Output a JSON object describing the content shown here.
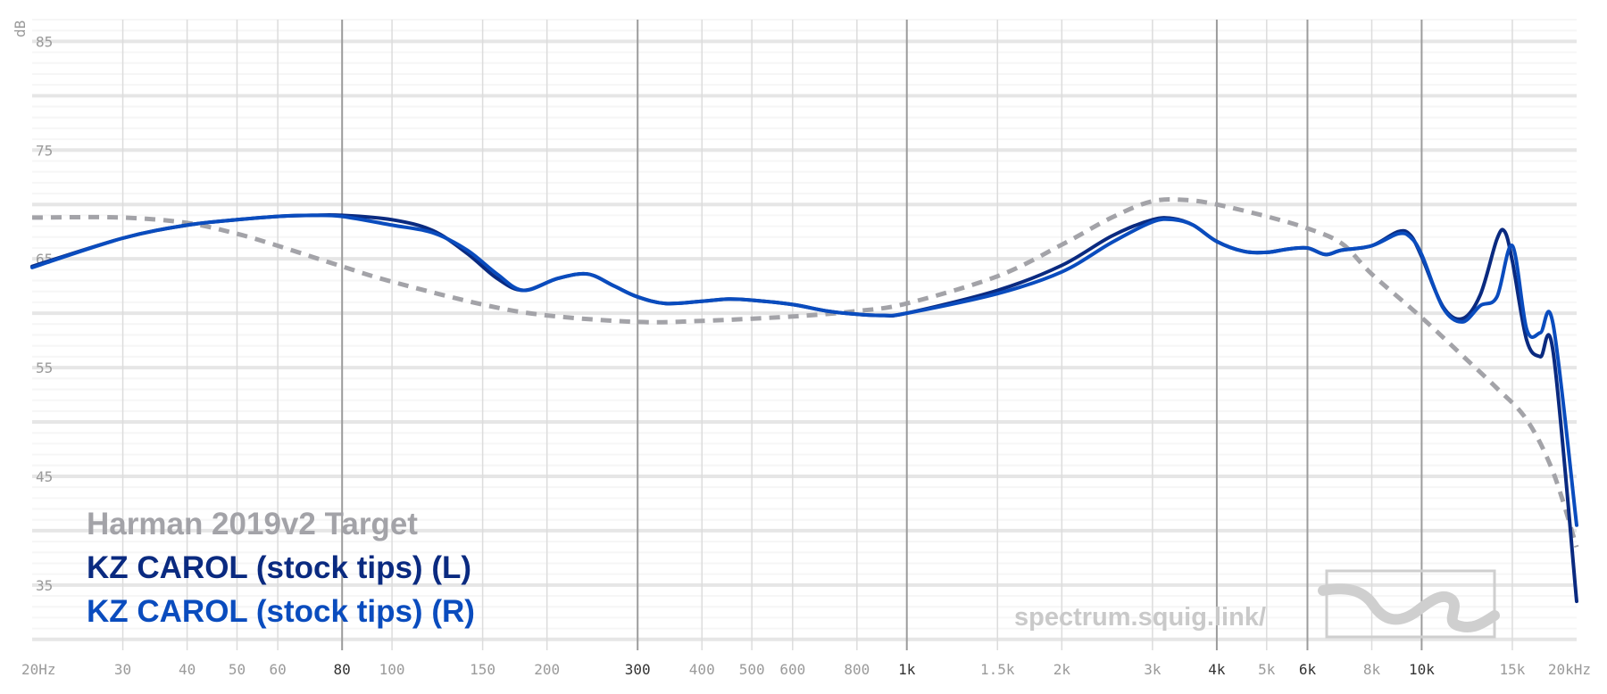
{
  "chart_data": {
    "type": "line",
    "ylabel": "dB",
    "xscale": "log",
    "xlim": [
      20,
      20000
    ],
    "ylim": [
      29,
      87
    ],
    "grid": true,
    "legend_position": "bottom-left",
    "y_ticks": [
      {
        "value": 85,
        "label": "85"
      },
      {
        "value": 75,
        "label": "75"
      },
      {
        "value": 65,
        "label": "65"
      },
      {
        "value": 55,
        "label": "55"
      },
      {
        "value": 45,
        "label": "45"
      },
      {
        "value": 35,
        "label": "35"
      }
    ],
    "x_ticks": [
      {
        "value": 20,
        "label": "20Hz",
        "major": false
      },
      {
        "value": 30,
        "label": "30",
        "major": false
      },
      {
        "value": 40,
        "label": "40",
        "major": false
      },
      {
        "value": 50,
        "label": "50",
        "major": false
      },
      {
        "value": 60,
        "label": "60",
        "major": false
      },
      {
        "value": 80,
        "label": "80",
        "major": true
      },
      {
        "value": 100,
        "label": "100",
        "major": false
      },
      {
        "value": 150,
        "label": "150",
        "major": false
      },
      {
        "value": 200,
        "label": "200",
        "major": false
      },
      {
        "value": 300,
        "label": "300",
        "major": true
      },
      {
        "value": 400,
        "label": "400",
        "major": false
      },
      {
        "value": 500,
        "label": "500",
        "major": false
      },
      {
        "value": 600,
        "label": "600",
        "major": false
      },
      {
        "value": 800,
        "label": "800",
        "major": false
      },
      {
        "value": 1000,
        "label": "1k",
        "major": true
      },
      {
        "value": 1500,
        "label": "1.5k",
        "major": false
      },
      {
        "value": 2000,
        "label": "2k",
        "major": false
      },
      {
        "value": 3000,
        "label": "3k",
        "major": false
      },
      {
        "value": 4000,
        "label": "4k",
        "major": true
      },
      {
        "value": 5000,
        "label": "5k",
        "major": false
      },
      {
        "value": 6000,
        "label": "6k",
        "major": true
      },
      {
        "value": 8000,
        "label": "8k",
        "major": false
      },
      {
        "value": 10000,
        "label": "10k",
        "major": true
      },
      {
        "value": 15000,
        "label": "15k",
        "major": false
      },
      {
        "value": 20000,
        "label": "20kHz",
        "major": false
      }
    ],
    "series": [
      {
        "name": "Harman 2019v2 Target",
        "color": "#a3a3a8",
        "style": "dashed",
        "points": [
          [
            20,
            68.8
          ],
          [
            30,
            68.8
          ],
          [
            40,
            68.3
          ],
          [
            50,
            67.3
          ],
          [
            60,
            66.2
          ],
          [
            80,
            64.3
          ],
          [
            100,
            62.9
          ],
          [
            150,
            60.8
          ],
          [
            200,
            59.8
          ],
          [
            300,
            59.2
          ],
          [
            400,
            59.3
          ],
          [
            600,
            59.7
          ],
          [
            800,
            60.2
          ],
          [
            1000,
            60.9
          ],
          [
            1500,
            63.4
          ],
          [
            2000,
            66.3
          ],
          [
            2500,
            68.8
          ],
          [
            3000,
            70.3
          ],
          [
            3500,
            70.4
          ],
          [
            4000,
            70.0
          ],
          [
            5000,
            68.9
          ],
          [
            6000,
            67.8
          ],
          [
            7000,
            66.4
          ],
          [
            8000,
            63.6
          ],
          [
            10000,
            59.6
          ],
          [
            12000,
            56.1
          ],
          [
            14000,
            53.1
          ],
          [
            16000,
            50.2
          ],
          [
            18000,
            45.4
          ],
          [
            20000,
            38.5
          ]
        ]
      },
      {
        "name": "KZ CAROL (stock tips) (L)",
        "color": "#0a2a80",
        "style": "solid",
        "points": [
          [
            20,
            64.3
          ],
          [
            30,
            66.9
          ],
          [
            40,
            68.1
          ],
          [
            50,
            68.6
          ],
          [
            60,
            68.9
          ],
          [
            70,
            69.0
          ],
          [
            80,
            69.0
          ],
          [
            100,
            68.6
          ],
          [
            120,
            67.6
          ],
          [
            140,
            65.5
          ],
          [
            160,
            63.2
          ],
          [
            180,
            62.1
          ],
          [
            210,
            63.2
          ],
          [
            240,
            63.6
          ],
          [
            270,
            62.5
          ],
          [
            300,
            61.5
          ],
          [
            340,
            60.9
          ],
          [
            400,
            61.1
          ],
          [
            450,
            61.3
          ],
          [
            500,
            61.2
          ],
          [
            600,
            60.8
          ],
          [
            700,
            60.2
          ],
          [
            800,
            59.9
          ],
          [
            900,
            59.8
          ],
          [
            1000,
            60.0
          ],
          [
            1500,
            62.1
          ],
          [
            2000,
            64.4
          ],
          [
            2500,
            67.1
          ],
          [
            3000,
            68.6
          ],
          [
            3300,
            68.7
          ],
          [
            3600,
            68.1
          ],
          [
            4000,
            66.6
          ],
          [
            4500,
            65.7
          ],
          [
            5000,
            65.6
          ],
          [
            5500,
            65.9
          ],
          [
            6000,
            66.0
          ],
          [
            6500,
            65.4
          ],
          [
            7000,
            65.8
          ],
          [
            8000,
            66.2
          ],
          [
            9000,
            67.5
          ],
          [
            9500,
            67.2
          ],
          [
            10000,
            65.2
          ],
          [
            11000,
            60.6
          ],
          [
            12000,
            59.5
          ],
          [
            13000,
            61.7
          ],
          [
            14000,
            66.8
          ],
          [
            14500,
            67.5
          ],
          [
            15000,
            64.8
          ],
          [
            16000,
            57.5
          ],
          [
            17000,
            56.0
          ],
          [
            18000,
            56.5
          ],
          [
            20000,
            33.5
          ]
        ]
      },
      {
        "name": "KZ CAROL (stock tips) (R)",
        "color": "#0a4cbe",
        "style": "solid",
        "points": [
          [
            20,
            64.2
          ],
          [
            30,
            66.9
          ],
          [
            40,
            68.1
          ],
          [
            50,
            68.6
          ],
          [
            60,
            68.9
          ],
          [
            70,
            69.0
          ],
          [
            80,
            68.9
          ],
          [
            100,
            68.1
          ],
          [
            120,
            67.4
          ],
          [
            140,
            65.8
          ],
          [
            160,
            63.6
          ],
          [
            180,
            62.1
          ],
          [
            210,
            63.2
          ],
          [
            240,
            63.6
          ],
          [
            270,
            62.5
          ],
          [
            300,
            61.5
          ],
          [
            340,
            60.9
          ],
          [
            400,
            61.1
          ],
          [
            450,
            61.3
          ],
          [
            500,
            61.2
          ],
          [
            600,
            60.8
          ],
          [
            700,
            60.2
          ],
          [
            800,
            59.9
          ],
          [
            900,
            59.8
          ],
          [
            1000,
            60.0
          ],
          [
            1500,
            61.8
          ],
          [
            2000,
            63.8
          ],
          [
            2500,
            66.5
          ],
          [
            3000,
            68.4
          ],
          [
            3300,
            68.6
          ],
          [
            3600,
            68.1
          ],
          [
            4000,
            66.6
          ],
          [
            4500,
            65.7
          ],
          [
            5000,
            65.6
          ],
          [
            5500,
            65.9
          ],
          [
            6000,
            66.0
          ],
          [
            6500,
            65.4
          ],
          [
            7000,
            65.8
          ],
          [
            8000,
            66.2
          ],
          [
            9000,
            67.3
          ],
          [
            9500,
            67.0
          ],
          [
            10000,
            65.4
          ],
          [
            11000,
            60.5
          ],
          [
            12000,
            59.2
          ],
          [
            13000,
            60.7
          ],
          [
            14000,
            61.5
          ],
          [
            15000,
            66.2
          ],
          [
            16000,
            58.5
          ],
          [
            17000,
            58.2
          ],
          [
            18000,
            59.0
          ],
          [
            20000,
            40.5
          ]
        ]
      }
    ]
  },
  "legend": [
    {
      "label": "Harman 2019v2 Target",
      "color": "#a3a3a8"
    },
    {
      "label": "KZ CAROL (stock tips) (L)",
      "color": "#0a2a80"
    },
    {
      "label": "KZ CAROL (stock tips) (R)",
      "color": "#0a4cbe"
    }
  ],
  "watermark": "spectrum.squig.link/"
}
